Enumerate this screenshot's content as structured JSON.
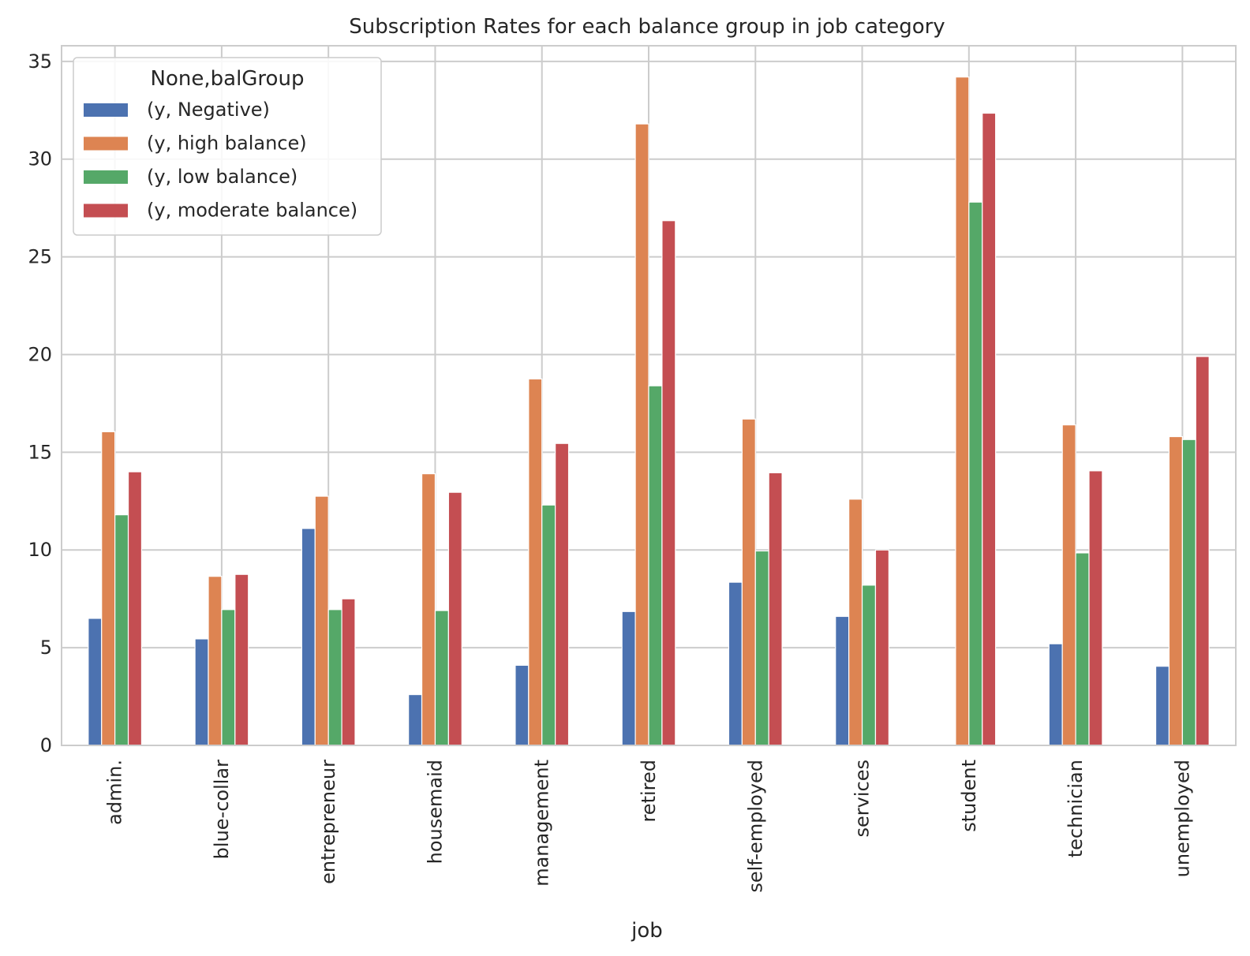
{
  "chart_data": {
    "type": "bar",
    "title": "Subscription Rates for each balance group in job category",
    "xlabel": "job",
    "ylabel": "",
    "ylim": [
      0,
      35.8
    ],
    "yticks": [
      0,
      5,
      10,
      15,
      20,
      25,
      30,
      35
    ],
    "grid": true,
    "legend_position": "top-left",
    "legend_title": "None,balGroup",
    "categories": [
      "admin.",
      "blue-collar",
      "entrepreneur",
      "housemaid",
      "management",
      "retired",
      "self-employed",
      "services",
      "student",
      "technician",
      "unemployed"
    ],
    "series": [
      {
        "name": "(y, Negative)",
        "color": "#4c72b0",
        "values": [
          6.5,
          5.45,
          11.1,
          2.6,
          4.1,
          6.85,
          8.35,
          6.6,
          0,
          5.2,
          4.05
        ]
      },
      {
        "name": "(y, high balance)",
        "color": "#dd8452",
        "values": [
          16.05,
          8.65,
          12.75,
          13.9,
          18.75,
          31.8,
          16.7,
          12.6,
          34.2,
          16.4,
          15.8
        ]
      },
      {
        "name": "(y, low balance)",
        "color": "#55a868",
        "values": [
          11.8,
          6.95,
          6.95,
          6.9,
          12.3,
          18.4,
          9.95,
          8.2,
          27.8,
          9.85,
          15.65
        ]
      },
      {
        "name": "(y, moderate balance)",
        "color": "#c44e52",
        "values": [
          14.0,
          8.75,
          7.5,
          12.95,
          15.45,
          26.85,
          13.95,
          10.0,
          32.35,
          14.05,
          19.9
        ]
      }
    ]
  }
}
